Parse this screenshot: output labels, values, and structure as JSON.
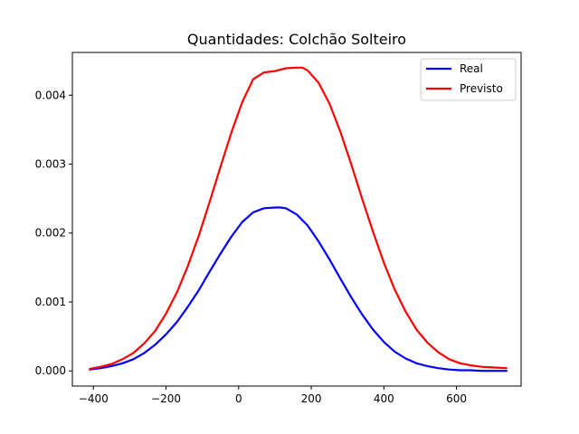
{
  "chart_data": {
    "type": "line",
    "title": "Quantidades: Colchão Solteiro",
    "xlabel": "",
    "ylabel": "",
    "xlim": [
      -458,
      778
    ],
    "ylim": [
      -0.00022,
      0.00462
    ],
    "xticks": [
      -400,
      -200,
      0,
      200,
      400,
      600
    ],
    "xtick_labels": [
      "−400",
      "−200",
      "0",
      "200",
      "400",
      "600"
    ],
    "yticks": [
      0.0,
      0.001,
      0.002,
      0.003,
      0.004
    ],
    "ytick_labels": [
      "0.000",
      "0.001",
      "0.002",
      "0.003",
      "0.004"
    ],
    "grid": false,
    "legend_position": "top-right",
    "series": [
      {
        "name": "Real",
        "color": "#0000ff",
        "x": [
          -410,
          -380,
          -350,
          -320,
          -290,
          -260,
          -230,
          -200,
          -170,
          -140,
          -110,
          -80,
          -50,
          -20,
          10,
          40,
          70,
          100,
          115,
          130,
          160,
          190,
          220,
          250,
          280,
          310,
          340,
          370,
          400,
          430,
          460,
          490,
          520,
          550,
          580,
          610,
          640,
          670,
          700,
          738
        ],
        "y": [
          2e-05,
          4e-05,
          7e-05,
          0.00011,
          0.00017,
          0.00026,
          0.00038,
          0.00053,
          0.00071,
          0.00093,
          0.00117,
          0.00144,
          0.0017,
          0.00195,
          0.00216,
          0.0023,
          0.00236,
          0.00237,
          0.00237,
          0.00236,
          0.00227,
          0.00211,
          0.00188,
          0.00162,
          0.00134,
          0.00107,
          0.00082,
          0.0006,
          0.00042,
          0.00028,
          0.00018,
          0.00011,
          7e-05,
          4e-05,
          2e-05,
          1e-05,
          1e-05,
          0.0,
          0.0,
          0.0
        ]
      },
      {
        "name": "Previsto",
        "color": "#ff0000",
        "x": [
          -410,
          -380,
          -350,
          -320,
          -290,
          -260,
          -230,
          -200,
          -170,
          -140,
          -110,
          -80,
          -50,
          -20,
          10,
          40,
          70,
          100,
          130,
          160,
          175,
          190,
          220,
          250,
          280,
          310,
          340,
          370,
          400,
          430,
          460,
          490,
          520,
          550,
          580,
          610,
          640,
          670,
          700,
          738
        ],
        "y": [
          3e-05,
          6e-05,
          0.0001,
          0.00017,
          0.00026,
          0.0004,
          0.00058,
          0.00083,
          0.00114,
          0.00152,
          0.00196,
          0.00245,
          0.00296,
          0.00346,
          0.0039,
          0.00423,
          0.00433,
          0.00435,
          0.00439,
          0.0044,
          0.0044,
          0.00436,
          0.00418,
          0.00388,
          0.00347,
          0.003,
          0.0025,
          0.00202,
          0.00157,
          0.00118,
          0.00086,
          0.0006,
          0.00041,
          0.00027,
          0.00017,
          0.00011,
          8e-05,
          6e-05,
          5e-05,
          4e-05
        ]
      }
    ]
  }
}
